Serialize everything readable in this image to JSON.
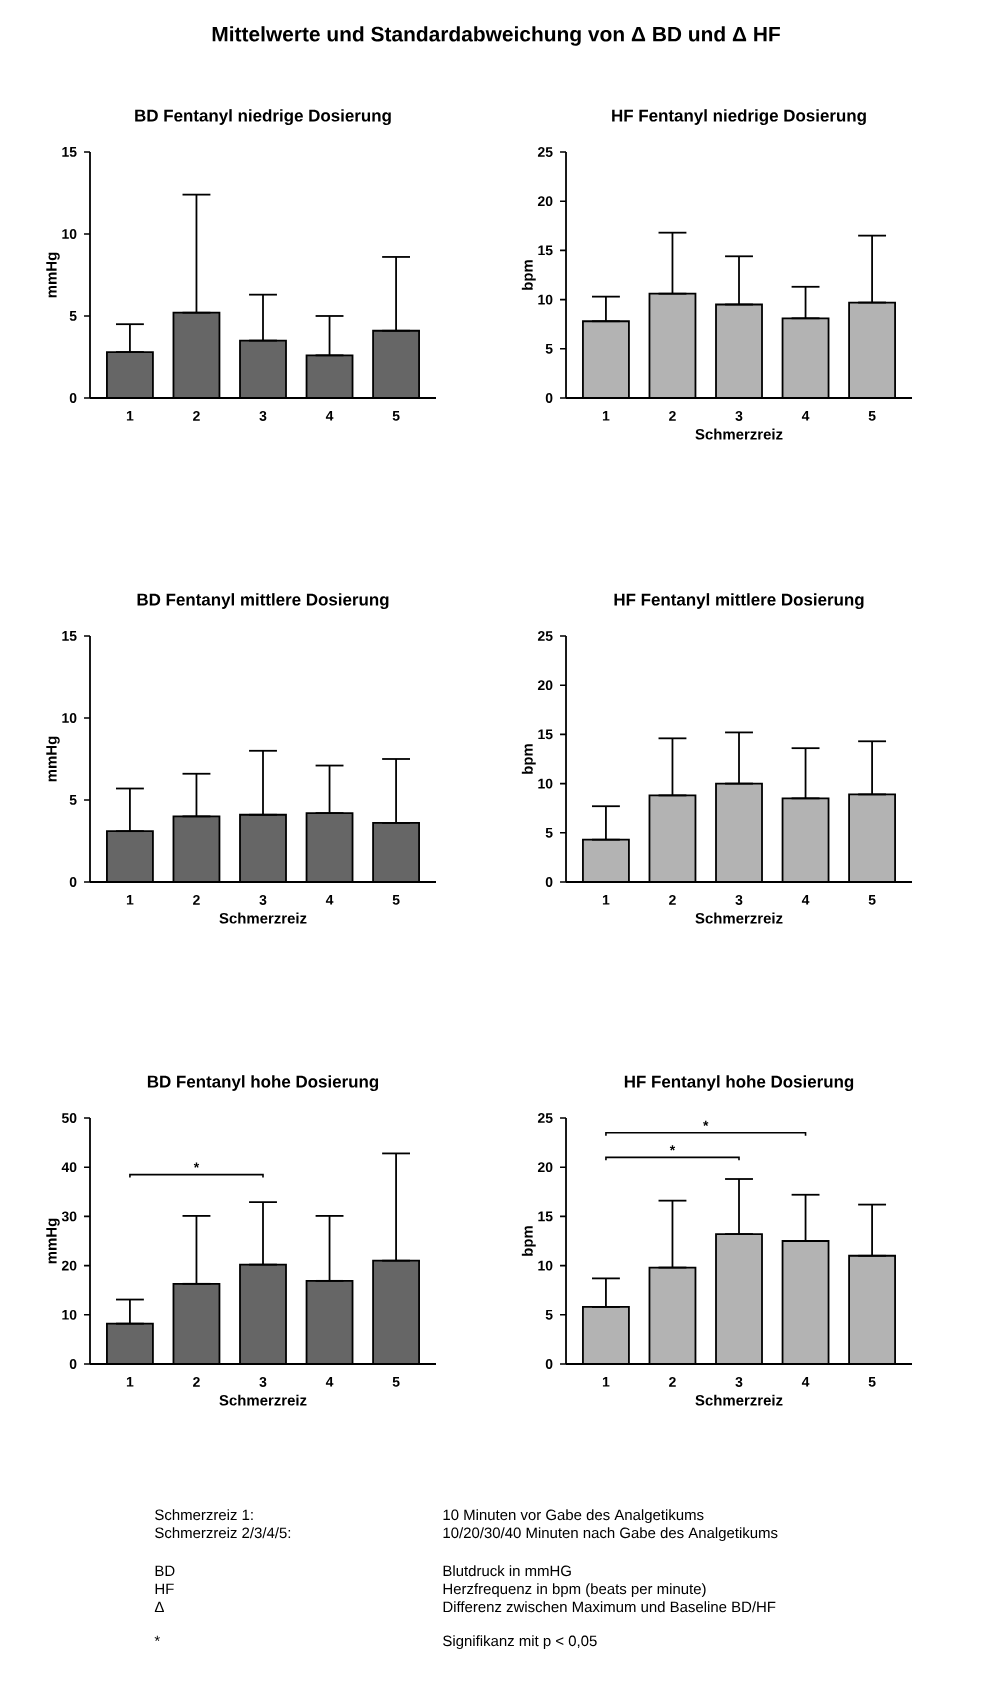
{
  "chart_data": [
    {
      "type": "other",
      "title": "Mittelwerte und Standardabweichung von Δ BD und Δ HF",
      "annotations": [
        "Schmerzreiz 1:",
        "10 Minuten vor Gabe des Analgetikums",
        "Schmerzreiz  2/3/4/5:",
        "10/20/30/40 Minuten nach Gabe des Analgetikums",
        "BD",
        "Blutdruck in mmHG",
        "HF",
        "Herzfrequenz in bpm (beats per minute)",
        "Δ",
        "Differenz zwischen Maximum und Baseline BD/HF",
        "*",
        "Signifikanz mit p < 0,05"
      ]
    },
    {
      "type": "bar",
      "title": "BD Fentanyl niedrige Dosierung",
      "ylabel": "mmHg",
      "categories": [
        "1",
        "2",
        "3",
        "4",
        "5"
      ],
      "color": "#666666",
      "ylim": [
        0,
        15
      ],
      "yticks": [
        0,
        5,
        10,
        15
      ],
      "values": [
        2.8,
        5.2,
        3.5,
        2.6,
        4.1
      ],
      "errors": [
        [
          2.8,
          4.5
        ],
        [
          5.2,
          12.4
        ],
        [
          3.5,
          6.3
        ],
        [
          2.6,
          5.0
        ],
        [
          4.1,
          8.6
        ]
      ]
    },
    {
      "type": "bar",
      "title": "HF Fentanyl niedrige Dosierung",
      "xlabel": "Schmerzreiz",
      "ylabel": "bpm",
      "categories": [
        "1",
        "2",
        "3",
        "4",
        "5"
      ],
      "color": "#b3b3b3",
      "ylim": [
        0,
        25
      ],
      "yticks": [
        0,
        5,
        10,
        15,
        20,
        25
      ],
      "values": [
        7.8,
        10.6,
        9.5,
        8.1,
        9.7
      ],
      "errors": [
        [
          7.8,
          10.3
        ],
        [
          10.6,
          16.8
        ],
        [
          9.5,
          14.4
        ],
        [
          8.1,
          11.3
        ],
        [
          9.7,
          16.5
        ]
      ]
    },
    {
      "type": "bar",
      "title": "BD Fentanyl mittlere Dosierung",
      "xlabel": "Schmerzreiz",
      "ylabel": "mmHg",
      "categories": [
        "1",
        "2",
        "3",
        "4",
        "5"
      ],
      "color": "#666666",
      "ylim": [
        0,
        15
      ],
      "yticks": [
        0,
        5,
        10,
        15
      ],
      "values": [
        3.1,
        4.0,
        4.1,
        4.2,
        3.6
      ],
      "errors": [
        [
          3.1,
          5.7
        ],
        [
          4.0,
          6.6
        ],
        [
          4.1,
          8.0
        ],
        [
          4.2,
          7.1
        ],
        [
          3.6,
          7.5
        ]
      ]
    },
    {
      "type": "bar",
      "title": "HF Fentanyl mittlere Dosierung",
      "xlabel": "Schmerzreiz",
      "ylabel": "bpm",
      "categories": [
        "1",
        "2",
        "3",
        "4",
        "5"
      ],
      "color": "#b3b3b3",
      "ylim": [
        0,
        25
      ],
      "yticks": [
        0,
        5,
        10,
        15,
        20,
        25
      ],
      "values": [
        4.3,
        8.8,
        10.0,
        8.5,
        8.9
      ],
      "errors": [
        [
          4.3,
          7.7
        ],
        [
          8.8,
          14.6
        ],
        [
          10.0,
          15.2
        ],
        [
          8.5,
          13.6
        ],
        [
          8.9,
          14.3
        ]
      ]
    },
    {
      "type": "bar",
      "title": "BD Fentanyl hohe Dosierung",
      "xlabel": "Schmerzreiz",
      "ylabel": "mmHg",
      "categories": [
        "1",
        "2",
        "3",
        "4",
        "5"
      ],
      "color": "#666666",
      "ylim": [
        0,
        50
      ],
      "yticks": [
        0,
        10,
        20,
        30,
        40,
        50
      ],
      "values": [
        8.2,
        16.3,
        20.2,
        16.9,
        21.0
      ],
      "errors": [
        [
          8.2,
          13.1
        ],
        [
          16.3,
          30.1
        ],
        [
          20.2,
          32.9
        ],
        [
          16.9,
          30.1
        ],
        [
          21.0,
          42.8
        ]
      ],
      "annotations": [
        "*"
      ]
    },
    {
      "type": "bar",
      "title": "HF Fentanyl hohe Dosierung",
      "xlabel": "Schmerzreiz",
      "ylabel": "bpm",
      "categories": [
        "1",
        "2",
        "3",
        "4",
        "5"
      ],
      "color": "#b3b3b3",
      "ylim": [
        0,
        25
      ],
      "yticks": [
        0,
        5,
        10,
        15,
        20,
        25
      ],
      "values": [
        5.8,
        9.8,
        13.2,
        12.5,
        11.0
      ],
      "errors": [
        [
          5.8,
          8.7
        ],
        [
          9.8,
          16.6
        ],
        [
          13.2,
          18.8
        ],
        [
          12.5,
          17.2
        ],
        [
          11.0,
          16.2
        ]
      ],
      "annotations": [
        "*",
        "*"
      ]
    }
  ]
}
